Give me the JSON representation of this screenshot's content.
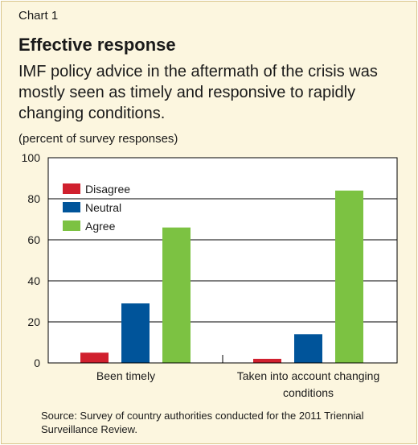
{
  "header": {
    "label": "Chart 1",
    "title": "Effective response",
    "subtitle": "IMF policy advice in the aftermath of the crisis was mostly seen as timely and responsive to rapidly changing conditions.",
    "unit": "(percent of survey responses)"
  },
  "source": "Source: Survey of country authorities conducted for the 2011 Triennial Surveillance Review.",
  "chart_data": {
    "type": "bar",
    "categories": [
      [
        "Been timely"
      ],
      [
        "Taken into account changing",
        "conditions"
      ]
    ],
    "series": [
      {
        "name": "Disagree",
        "color": "#d0202e",
        "values": [
          5,
          2
        ]
      },
      {
        "name": "Neutral",
        "color": "#00549a",
        "values": [
          29,
          14
        ]
      },
      {
        "name": "Agree",
        "color": "#7cc242",
        "values": [
          66,
          84
        ]
      }
    ],
    "ylim": [
      0,
      100
    ],
    "yticks": [
      0,
      20,
      40,
      60,
      80,
      100
    ],
    "grid": true,
    "legend": "top-left",
    "xlabel": "",
    "ylabel": ""
  }
}
